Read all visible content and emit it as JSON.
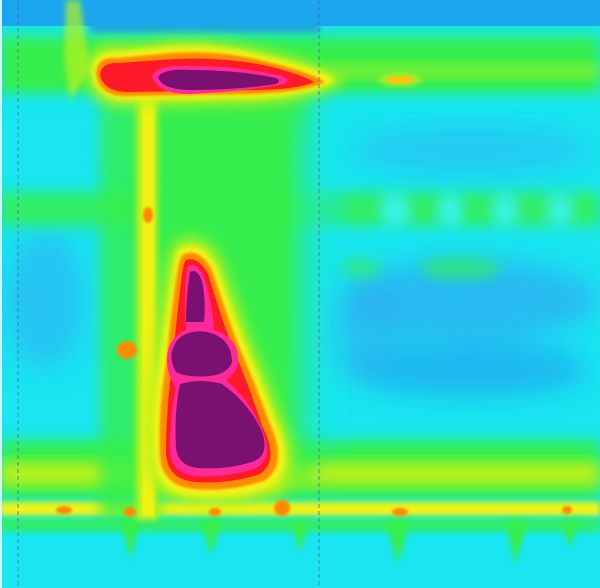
{
  "image": {
    "kind": "false-color intensity heatmap (thermal / spectrogram style)",
    "printed_text": "",
    "colormap": [
      "#0a7ee6",
      "#2fa8f2",
      "#19e6f0",
      "#12f2a8",
      "#3af05a",
      "#a8f018",
      "#e8f010",
      "#ff7a00",
      "#ff1a2a",
      "#ff2a9a",
      "#7a1070"
    ]
  },
  "palette": {
    "top_band": "#1aa6ef",
    "cyan_field": "#19e6f0",
    "light_cyan": "#3bf4ef",
    "blue_patch": "#2fa8f2",
    "deep_blue": "#1e8ef0",
    "green_band": "#36ee4e",
    "lime": "#b8f21a",
    "yellow": "#f2f212",
    "orange": "#ff8a00",
    "red": "#ff1a2a",
    "magenta_edge": "#ff2a9a",
    "hot_core": "#7a1070",
    "divider": "#4a6aa6"
  }
}
